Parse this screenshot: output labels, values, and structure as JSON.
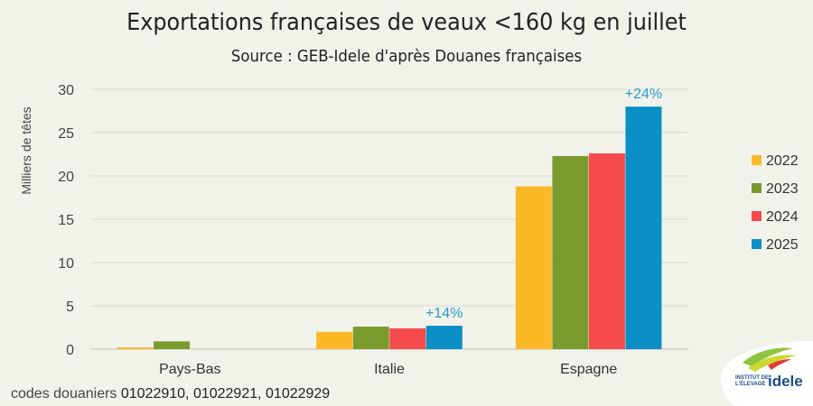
{
  "title": "Exportations françaises de veaux <160 kg en juillet",
  "subtitle": "Source : GEB-Idele d'après Douanes françaises",
  "footer": {
    "prefix": "codes douaniers ",
    "codes": "01022910, 01022921, 01022929"
  },
  "logo": {
    "line1": "INSTITUT DE",
    "line2": "L'ÉLEVAGE",
    "brand": "idele"
  },
  "chart_data": {
    "type": "bar",
    "categories": [
      "Pays-Bas",
      "Italie",
      "Espagne"
    ],
    "series": [
      {
        "name": "2022",
        "color": "#FDB827",
        "values": [
          0.2,
          2.0,
          18.8
        ]
      },
      {
        "name": "2023",
        "color": "#7A9A2E",
        "values": [
          0.9,
          2.6,
          22.3
        ]
      },
      {
        "name": "2024",
        "color": "#F64B4D",
        "values": [
          null,
          2.4,
          22.6
        ]
      },
      {
        "name": "2025",
        "color": "#0A8FC7",
        "values": [
          null,
          2.7,
          28.0
        ]
      }
    ],
    "ylabel": "Milliers de têtes",
    "ylim": [
      0,
      30
    ],
    "yticks": [
      0,
      5,
      10,
      15,
      20,
      25,
      30
    ],
    "grid": true,
    "legend": "right",
    "annotations": [
      {
        "category": "Italie",
        "series": "2025",
        "text": "+14%"
      },
      {
        "category": "Espagne",
        "series": "2025",
        "text": "+24%"
      }
    ],
    "annotation_color": "#2A9BC9"
  }
}
